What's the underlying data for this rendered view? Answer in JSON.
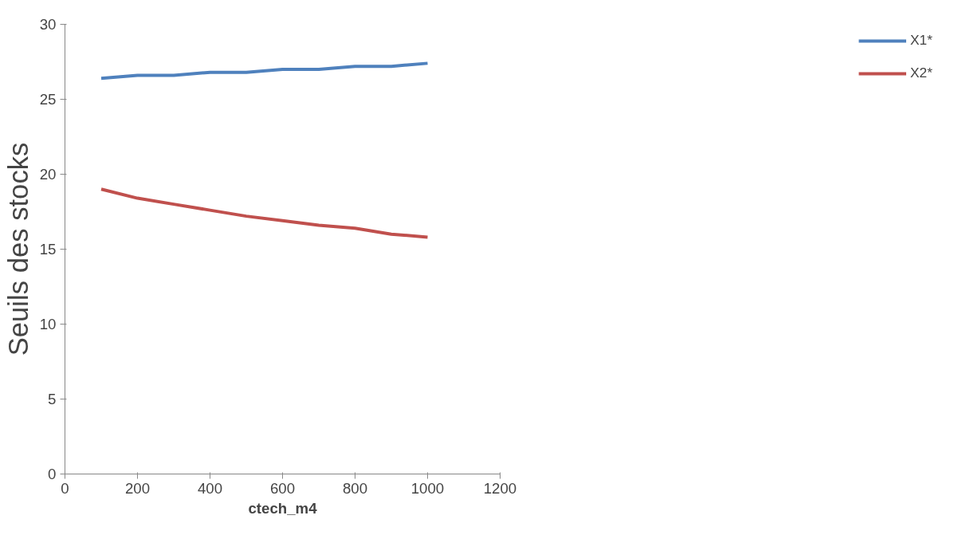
{
  "chart_data": {
    "type": "line",
    "xlabel": "ctech_m4",
    "ylabel": "Seuils des stocks",
    "x": [
      100,
      200,
      300,
      400,
      500,
      600,
      700,
      800,
      900,
      1000
    ],
    "series": [
      {
        "name": "X1*",
        "color": "#4f81bd",
        "values": [
          26.4,
          26.6,
          26.6,
          26.8,
          26.8,
          27.0,
          27.0,
          27.2,
          27.2,
          27.4
        ]
      },
      {
        "name": "X2*",
        "color": "#c0504d",
        "values": [
          19.0,
          18.4,
          18.0,
          17.6,
          17.2,
          16.9,
          16.6,
          16.4,
          16.0,
          15.8
        ]
      }
    ],
    "xlim": [
      0,
      1200
    ],
    "xticks": [
      0,
      200,
      400,
      600,
      800,
      1000,
      1200
    ],
    "ylim": [
      0,
      30
    ],
    "yticks": [
      0,
      5,
      10,
      15,
      20,
      25,
      30
    ],
    "grid": false,
    "legend": "right",
    "marker": "none",
    "line_style": "solid"
  }
}
